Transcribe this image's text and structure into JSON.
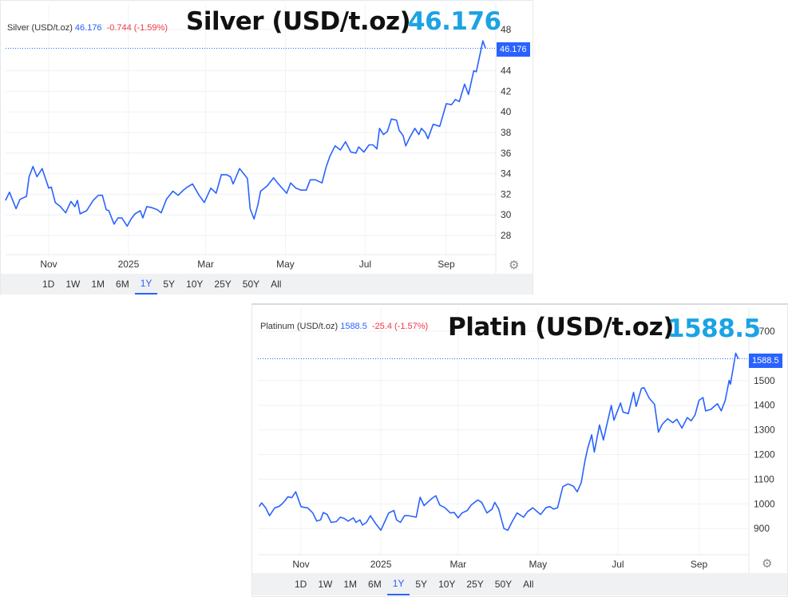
{
  "chart_data": [
    {
      "type": "line",
      "legend": {
        "name": "Silver (USD/t.oz)",
        "price": "46.176",
        "change": "-0.744 (-1.59%)"
      },
      "overlay_title": "Silver (USD/t.oz)",
      "overlay_value": "46.176",
      "last_price_label": "46.176",
      "last_price": 46.176,
      "ylim": [
        26.5,
        49
      ],
      "yticks": [
        "48",
        "44",
        "42",
        "40",
        "38",
        "36",
        "34",
        "32",
        "30",
        "28"
      ],
      "xticks": [
        {
          "label": "Nov",
          "date": "2024-11-01"
        },
        {
          "label": "2025",
          "date": "2025-01-01"
        },
        {
          "label": "Mar",
          "date": "2025-03-01"
        },
        {
          "label": "May",
          "date": "2025-05-01"
        },
        {
          "label": "Jul",
          "date": "2025-07-01"
        },
        {
          "label": "Sep",
          "date": "2025-09-01"
        }
      ],
      "grid": true,
      "line_color": "#2962ff",
      "points": [
        [
          "2024-09-29",
          31.4
        ],
        [
          "2024-10-02",
          32.2
        ],
        [
          "2024-10-07",
          30.6
        ],
        [
          "2024-10-10",
          31.5
        ],
        [
          "2024-10-15",
          31.8
        ],
        [
          "2024-10-17",
          33.7
        ],
        [
          "2024-10-20",
          34.7
        ],
        [
          "2024-10-23",
          33.7
        ],
        [
          "2024-10-27",
          34.5
        ],
        [
          "2024-11-01",
          32.6
        ],
        [
          "2024-11-03",
          32.7
        ],
        [
          "2024-11-06",
          31.2
        ],
        [
          "2024-11-10",
          30.8
        ],
        [
          "2024-11-14",
          30.2
        ],
        [
          "2024-11-18",
          31.3
        ],
        [
          "2024-11-21",
          30.8
        ],
        [
          "2024-11-23",
          31.4
        ],
        [
          "2024-11-25",
          30.1
        ],
        [
          "2024-11-30",
          30.4
        ],
        [
          "2024-12-05",
          31.4
        ],
        [
          "2024-12-09",
          31.9
        ],
        [
          "2024-12-12",
          31.9
        ],
        [
          "2024-12-15",
          30.5
        ],
        [
          "2024-12-17",
          30.4
        ],
        [
          "2024-12-21",
          29.1
        ],
        [
          "2024-12-24",
          29.7
        ],
        [
          "2024-12-27",
          29.7
        ],
        [
          "2024-12-31",
          28.9
        ],
        [
          "2025-01-03",
          29.6
        ],
        [
          "2025-01-06",
          30.1
        ],
        [
          "2025-01-10",
          30.4
        ],
        [
          "2025-01-12",
          29.7
        ],
        [
          "2025-01-15",
          30.8
        ],
        [
          "2025-01-19",
          30.7
        ],
        [
          "2025-01-23",
          30.5
        ],
        [
          "2025-01-26",
          30.2
        ],
        [
          "2025-01-30",
          31.5
        ],
        [
          "2025-02-04",
          32.3
        ],
        [
          "2025-02-08",
          31.9
        ],
        [
          "2025-02-12",
          32.4
        ],
        [
          "2025-02-15",
          32.7
        ],
        [
          "2025-02-19",
          33.0
        ],
        [
          "2025-02-24",
          31.9
        ],
        [
          "2025-02-28",
          31.2
        ],
        [
          "2025-03-05",
          32.6
        ],
        [
          "2025-03-09",
          32.1
        ],
        [
          "2025-03-13",
          33.9
        ],
        [
          "2025-03-17",
          33.9
        ],
        [
          "2025-03-20",
          33.7
        ],
        [
          "2025-03-22",
          33.0
        ],
        [
          "2025-03-27",
          34.5
        ],
        [
          "2025-04-01",
          33.7
        ],
        [
          "2025-04-02",
          33.5
        ],
        [
          "2025-04-04",
          30.6
        ],
        [
          "2025-04-07",
          29.6
        ],
        [
          "2025-04-10",
          31.0
        ],
        [
          "2025-04-12",
          32.3
        ],
        [
          "2025-04-17",
          32.8
        ],
        [
          "2025-04-22",
          33.6
        ],
        [
          "2025-04-25",
          33.1
        ],
        [
          "2025-05-02",
          32.1
        ],
        [
          "2025-05-05",
          33.1
        ],
        [
          "2025-05-09",
          32.6
        ],
        [
          "2025-05-13",
          32.4
        ],
        [
          "2025-05-17",
          32.4
        ],
        [
          "2025-05-20",
          33.4
        ],
        [
          "2025-05-24",
          33.4
        ],
        [
          "2025-05-29",
          33.1
        ],
        [
          "2025-06-01",
          34.6
        ],
        [
          "2025-06-04",
          35.7
        ],
        [
          "2025-06-08",
          36.7
        ],
        [
          "2025-06-12",
          36.3
        ],
        [
          "2025-06-16",
          37.1
        ],
        [
          "2025-06-20",
          36.1
        ],
        [
          "2025-06-24",
          36.0
        ],
        [
          "2025-06-26",
          36.6
        ],
        [
          "2025-06-30",
          36.1
        ],
        [
          "2025-07-04",
          36.8
        ],
        [
          "2025-07-07",
          36.8
        ],
        [
          "2025-07-10",
          36.4
        ],
        [
          "2025-07-12",
          38.4
        ],
        [
          "2025-07-15",
          37.8
        ],
        [
          "2025-07-18",
          38.1
        ],
        [
          "2025-07-21",
          39.3
        ],
        [
          "2025-07-25",
          39.2
        ],
        [
          "2025-07-27",
          38.2
        ],
        [
          "2025-07-30",
          37.7
        ],
        [
          "2025-08-01",
          36.7
        ],
        [
          "2025-08-04",
          37.5
        ],
        [
          "2025-08-08",
          38.4
        ],
        [
          "2025-08-11",
          37.8
        ],
        [
          "2025-08-13",
          38.4
        ],
        [
          "2025-08-16",
          38.0
        ],
        [
          "2025-08-18",
          37.4
        ],
        [
          "2025-08-22",
          38.8
        ],
        [
          "2025-08-27",
          38.6
        ],
        [
          "2025-09-01",
          40.8
        ],
        [
          "2025-09-05",
          40.7
        ],
        [
          "2025-09-08",
          41.2
        ],
        [
          "2025-09-11",
          41.0
        ],
        [
          "2025-09-15",
          42.7
        ],
        [
          "2025-09-18",
          41.7
        ],
        [
          "2025-09-22",
          44.0
        ],
        [
          "2025-09-24",
          43.9
        ],
        [
          "2025-09-29",
          46.9
        ],
        [
          "2025-10-01",
          46.176
        ]
      ]
    },
    {
      "type": "line",
      "legend": {
        "name": "Platinum (USD/t.oz)",
        "price": "1588.5",
        "change": "-25.4 (-1.57%)"
      },
      "overlay_title": "Platin (USD/t.oz)",
      "overlay_value": "1588.5",
      "last_price_label": "1588.5",
      "last_price": 1588.5,
      "ylim": [
        800,
        1720
      ],
      "yticks": [
        "1700",
        "1500",
        "1400",
        "1300",
        "1200",
        "1100",
        "1000",
        "900"
      ],
      "xticks": [
        {
          "label": "Nov",
          "date": "2024-11-01"
        },
        {
          "label": "2025",
          "date": "2025-01-01"
        },
        {
          "label": "Mar",
          "date": "2025-03-01"
        },
        {
          "label": "May",
          "date": "2025-05-01"
        },
        {
          "label": "Jul",
          "date": "2025-07-01"
        },
        {
          "label": "Sep",
          "date": "2025-09-01"
        }
      ],
      "grid": true,
      "line_color": "#2962ff",
      "points": [
        [
          "2024-09-30",
          989
        ],
        [
          "2024-10-02",
          1004
        ],
        [
          "2024-10-05",
          984
        ],
        [
          "2024-10-08",
          952
        ],
        [
          "2024-10-12",
          984
        ],
        [
          "2024-10-15",
          989
        ],
        [
          "2024-10-17",
          997
        ],
        [
          "2024-10-20",
          1014
        ],
        [
          "2024-10-22",
          1029
        ],
        [
          "2024-10-25",
          1025
        ],
        [
          "2024-10-28",
          1049
        ],
        [
          "2024-11-01",
          989
        ],
        [
          "2024-11-03",
          986
        ],
        [
          "2024-11-06",
          984
        ],
        [
          "2024-11-10",
          963
        ],
        [
          "2024-11-13",
          930
        ],
        [
          "2024-11-16",
          935
        ],
        [
          "2024-11-18",
          965
        ],
        [
          "2024-11-21",
          957
        ],
        [
          "2024-11-24",
          925
        ],
        [
          "2024-11-28",
          928
        ],
        [
          "2024-12-01",
          946
        ],
        [
          "2024-12-04",
          941
        ],
        [
          "2024-12-07",
          930
        ],
        [
          "2024-12-11",
          943
        ],
        [
          "2024-12-13",
          925
        ],
        [
          "2024-12-16",
          935
        ],
        [
          "2024-12-18",
          914
        ],
        [
          "2024-12-21",
          925
        ],
        [
          "2024-12-24",
          952
        ],
        [
          "2024-12-28",
          920
        ],
        [
          "2025-01-01",
          893
        ],
        [
          "2025-01-04",
          928
        ],
        [
          "2025-01-07",
          963
        ],
        [
          "2025-01-11",
          973
        ],
        [
          "2025-01-13",
          935
        ],
        [
          "2025-01-16",
          925
        ],
        [
          "2025-01-19",
          952
        ],
        [
          "2025-01-22",
          952
        ],
        [
          "2025-01-28",
          946
        ],
        [
          "2025-01-31",
          1027
        ],
        [
          "2025-02-03",
          993
        ],
        [
          "2025-02-06",
          1008
        ],
        [
          "2025-02-09",
          1022
        ],
        [
          "2025-02-12",
          1033
        ],
        [
          "2025-02-15",
          995
        ],
        [
          "2025-02-19",
          984
        ],
        [
          "2025-02-23",
          963
        ],
        [
          "2025-02-26",
          965
        ],
        [
          "2025-03-01",
          943
        ],
        [
          "2025-03-04",
          963
        ],
        [
          "2025-03-08",
          973
        ],
        [
          "2025-03-11",
          995
        ],
        [
          "2025-03-16",
          1016
        ],
        [
          "2025-03-19",
          1006
        ],
        [
          "2025-03-23",
          963
        ],
        [
          "2025-03-27",
          979
        ],
        [
          "2025-03-29",
          1006
        ],
        [
          "2025-04-01",
          979
        ],
        [
          "2025-04-05",
          900
        ],
        [
          "2025-04-08",
          893
        ],
        [
          "2025-04-11",
          925
        ],
        [
          "2025-04-15",
          963
        ],
        [
          "2025-04-20",
          946
        ],
        [
          "2025-04-23",
          968
        ],
        [
          "2025-04-27",
          984
        ],
        [
          "2025-05-03",
          957
        ],
        [
          "2025-05-07",
          984
        ],
        [
          "2025-05-10",
          989
        ],
        [
          "2025-05-13",
          979
        ],
        [
          "2025-05-16",
          984
        ],
        [
          "2025-05-20",
          1070
        ],
        [
          "2025-05-24",
          1081
        ],
        [
          "2025-05-28",
          1072
        ],
        [
          "2025-05-31",
          1049
        ],
        [
          "2025-06-03",
          1086
        ],
        [
          "2025-06-06",
          1178
        ],
        [
          "2025-06-08",
          1226
        ],
        [
          "2025-06-11",
          1280
        ],
        [
          "2025-06-13",
          1210
        ],
        [
          "2025-06-17",
          1320
        ],
        [
          "2025-06-20",
          1259
        ],
        [
          "2025-06-22",
          1307
        ],
        [
          "2025-06-26",
          1399
        ],
        [
          "2025-06-28",
          1339
        ],
        [
          "2025-07-03",
          1409
        ],
        [
          "2025-07-05",
          1372
        ],
        [
          "2025-07-09",
          1366
        ],
        [
          "2025-07-13",
          1452
        ],
        [
          "2025-07-15",
          1395
        ],
        [
          "2025-07-19",
          1468
        ],
        [
          "2025-07-21",
          1471
        ],
        [
          "2025-07-25",
          1428
        ],
        [
          "2025-07-29",
          1404
        ],
        [
          "2025-08-01",
          1291
        ],
        [
          "2025-08-04",
          1323
        ],
        [
          "2025-08-08",
          1345
        ],
        [
          "2025-08-12",
          1329
        ],
        [
          "2025-08-15",
          1343
        ],
        [
          "2025-08-19",
          1307
        ],
        [
          "2025-08-23",
          1350
        ],
        [
          "2025-08-26",
          1337
        ],
        [
          "2025-08-29",
          1361
        ],
        [
          "2025-09-01",
          1420
        ],
        [
          "2025-09-04",
          1431
        ],
        [
          "2025-09-06",
          1377
        ],
        [
          "2025-09-10",
          1383
        ],
        [
          "2025-09-15",
          1406
        ],
        [
          "2025-09-18",
          1377
        ],
        [
          "2025-09-21",
          1420
        ],
        [
          "2025-09-24",
          1501
        ],
        [
          "2025-09-25",
          1485
        ],
        [
          "2025-09-29",
          1611
        ],
        [
          "2025-10-01",
          1588.5
        ]
      ]
    }
  ],
  "range_buttons": [
    "1D",
    "1W",
    "1M",
    "6M",
    "1Y",
    "5Y",
    "10Y",
    "25Y",
    "50Y",
    "All"
  ],
  "active_range": "1Y",
  "icons": {
    "settings": "gear-icon"
  },
  "colors": {
    "line": "#2962ff",
    "change_negative": "#f23645",
    "overlay_value": "#1ba3e3",
    "price_badge": "#2962ff"
  }
}
